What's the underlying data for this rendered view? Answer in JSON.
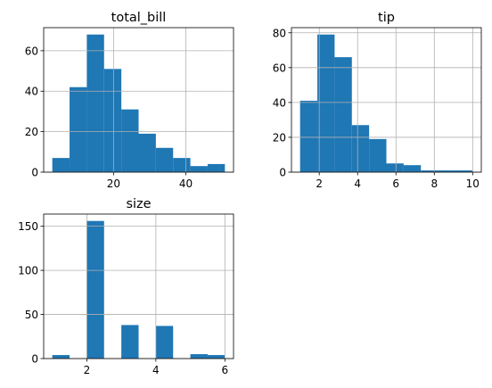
{
  "chart_data": [
    {
      "type": "histogram",
      "title": "total_bill",
      "color": "#1f77b4",
      "grid": true,
      "bins": [
        3.07,
        7.844,
        12.618,
        17.392,
        22.166,
        26.94,
        31.714,
        36.488,
        41.262,
        46.036,
        50.81
      ],
      "values": [
        7,
        42,
        68,
        51,
        31,
        19,
        12,
        7,
        3,
        4
      ],
      "xlim": [
        0.683,
        53.197
      ],
      "xticks": [
        20,
        40
      ],
      "ylim": [
        0,
        71.4
      ],
      "yticks": [
        0,
        20,
        40,
        60
      ]
    },
    {
      "type": "histogram",
      "title": "tip",
      "color": "#1f77b4",
      "grid": true,
      "bins": [
        1,
        1.9,
        2.8,
        3.7,
        4.6,
        5.5,
        6.4,
        7.3,
        8.2,
        9.1,
        10
      ],
      "values": [
        41,
        79,
        66,
        27,
        19,
        5,
        4,
        1,
        1,
        1
      ],
      "xlim": [
        0.55,
        10.45
      ],
      "xticks": [
        2,
        4,
        6,
        8,
        10
      ],
      "ylim": [
        0,
        82.95
      ],
      "yticks": [
        0,
        20,
        40,
        60,
        80
      ]
    },
    {
      "type": "histogram",
      "title": "size",
      "color": "#1f77b4",
      "grid": true,
      "bins": [
        1,
        1.5,
        2,
        2.5,
        3,
        3.5,
        4,
        4.5,
        5,
        5.5,
        6
      ],
      "values": [
        4,
        0,
        156,
        0,
        38,
        0,
        37,
        0,
        5,
        4
      ],
      "xlim": [
        0.75,
        6.25
      ],
      "xticks": [
        2,
        4,
        6
      ],
      "ylim": [
        0,
        163.8
      ],
      "yticks": [
        0,
        50,
        100,
        150
      ]
    }
  ]
}
